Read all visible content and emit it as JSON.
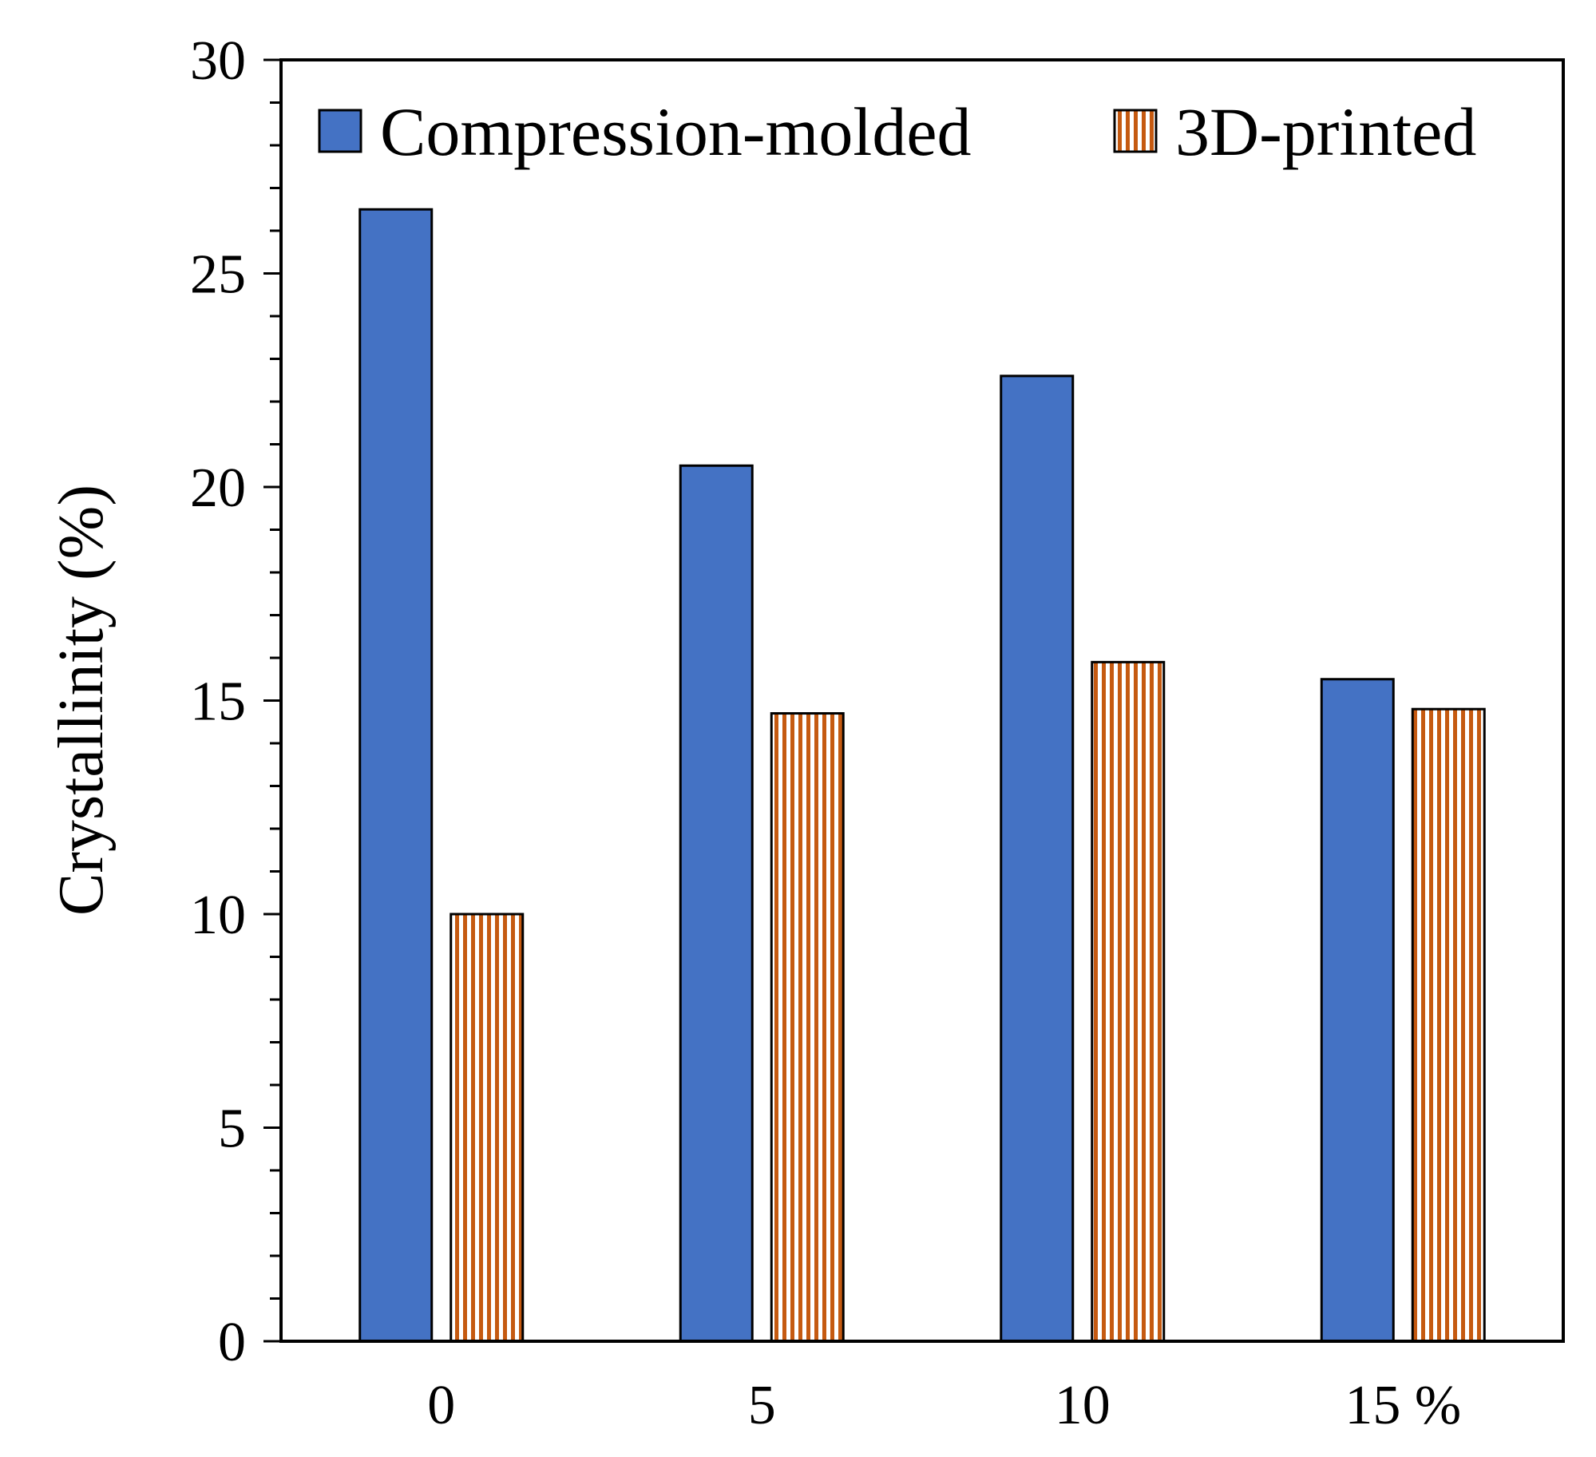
{
  "chart_data": {
    "type": "bar",
    "title": "",
    "xlabel": "",
    "ylabel": "Crystallinity (%)",
    "ylim": [
      0,
      30
    ],
    "y_major_ticks": [
      0,
      5,
      10,
      15,
      20,
      25,
      30
    ],
    "y_minor_step": 1,
    "categories": [
      "0",
      "5",
      "10",
      "15 %"
    ],
    "series": [
      {
        "name": "Compression-molded",
        "values": [
          26.5,
          20.5,
          22.6,
          15.5
        ],
        "color": "#4472C4",
        "pattern": "solid"
      },
      {
        "name": "3D-printed",
        "values": [
          10.0,
          14.7,
          15.9,
          14.8
        ],
        "color": "#C55A11",
        "pattern": "vertical-stripes"
      }
    ],
    "legend_position": "top",
    "grid": false
  }
}
